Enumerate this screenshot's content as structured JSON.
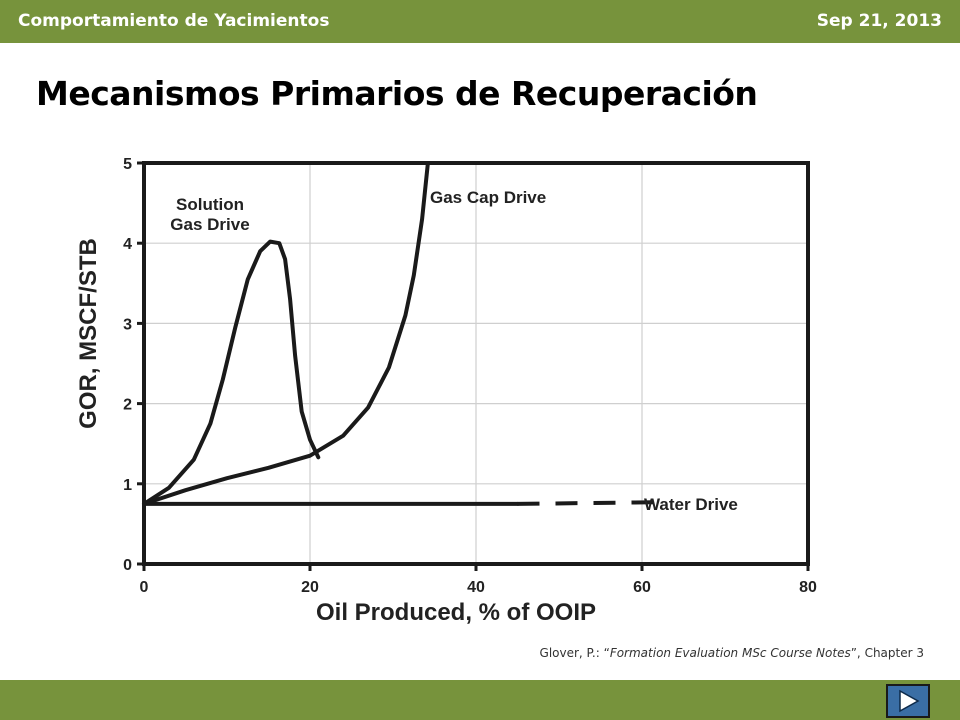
{
  "header": {
    "course_title": "Comportamiento de Yacimientos",
    "date": "Sep 21, 2013"
  },
  "slide": {
    "title": "Mecanismos Primarios de Recuperación",
    "citation_prefix": "Glover, P.: “",
    "citation_title": "Formation Evaluation MSc Course Notes",
    "citation_suffix": "”, Chapter 3"
  },
  "colors": {
    "bar": "#77933c",
    "nav_button": "#3a6ea5"
  },
  "nav": {
    "next_icon": "play-triangle-icon"
  },
  "chart_data": {
    "type": "line",
    "xlabel": "Oil Produced, % of OOIP",
    "ylabel": "GOR, MSCF/STB",
    "xlim": [
      0,
      80
    ],
    "ylim": [
      0,
      5
    ],
    "xticks": [
      0,
      20,
      40,
      60,
      80
    ],
    "yticks": [
      0,
      1,
      2,
      3,
      4,
      5
    ],
    "grid": true,
    "series": [
      {
        "name": "Solution Gas Drive",
        "x": [
          0,
          3,
          6,
          8,
          9.5,
          11,
          12.5,
          14,
          15.2,
          16.3,
          17,
          17.6,
          18.2,
          19,
          20,
          21
        ],
        "y": [
          0.75,
          0.95,
          1.3,
          1.75,
          2.3,
          2.95,
          3.55,
          3.9,
          4.02,
          4.0,
          3.8,
          3.3,
          2.6,
          1.9,
          1.55,
          1.33
        ]
      },
      {
        "name": "Gas Cap Drive",
        "x": [
          0,
          5,
          10,
          15,
          20,
          24,
          27,
          29.5,
          31.5,
          32.5,
          33.5,
          34.2
        ],
        "y": [
          0.75,
          0.92,
          1.07,
          1.2,
          1.35,
          1.6,
          1.95,
          2.45,
          3.1,
          3.6,
          4.3,
          5.0
        ]
      },
      {
        "name": "Water Drive",
        "x": [
          0,
          45,
          62
        ],
        "y": [
          0.75,
          0.75,
          0.77
        ],
        "dashed_from_x": 45
      }
    ]
  }
}
